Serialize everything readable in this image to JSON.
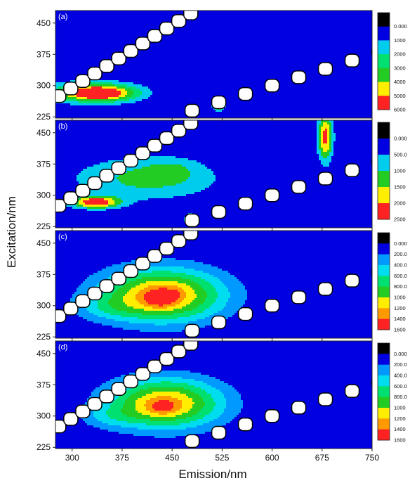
{
  "chart_data": {
    "type": "heatmap",
    "figure": {
      "xlabel": "Emission/nm",
      "ylabel": "Excitation/nm",
      "xlim": [
        275,
        750
      ],
      "ylim": [
        222,
        480
      ],
      "xticks": [
        300,
        375,
        450,
        525,
        600,
        675,
        750
      ],
      "yticks": [
        225,
        300,
        375,
        450
      ]
    },
    "panels": [
      {
        "label": "(a)",
        "colorbar": {
          "ticks": [
            "0.000",
            "1000",
            "2000",
            "3000",
            "4000",
            "5000",
            "6000"
          ],
          "colors": [
            "#000000",
            "#0000e0",
            "#00ccee",
            "#00e070",
            "#22cc22",
            "#ffee00",
            "#ff2222"
          ]
        },
        "peaks": [
          {
            "em": 340,
            "ex": 282,
            "sx": 38,
            "sy": 14,
            "amp": 6000
          },
          {
            "em": 320,
            "ex": 284,
            "sx": 60,
            "sy": 20,
            "amp": 1600
          },
          {
            "em": 520,
            "ex": 252,
            "sx": 6,
            "sy": 7,
            "amp": 5600
          },
          {
            "em": 560,
            "ex": 280,
            "sx": 6,
            "sy": 8,
            "amp": 3600
          }
        ]
      },
      {
        "label": "(b)",
        "colorbar": {
          "ticks": [
            "0.000",
            "500.0",
            "1000",
            "1500",
            "2000",
            "2500"
          ],
          "colors": [
            "#000000",
            "#0000e0",
            "#00ccee",
            "#22cc22",
            "#ffee00",
            "#ff2222"
          ]
        },
        "peaks": [
          {
            "em": 335,
            "ex": 283,
            "sx": 25,
            "sy": 10,
            "amp": 2400
          },
          {
            "em": 410,
            "ex": 340,
            "sx": 80,
            "sy": 38,
            "amp": 1150
          },
          {
            "em": 450,
            "ex": 360,
            "sx": 25,
            "sy": 18,
            "amp": 500
          },
          {
            "em": 680,
            "ex": 440,
            "sx": 8,
            "sy": 42,
            "amp": 2200
          },
          {
            "em": 477,
            "ex": 242,
            "sx": 5,
            "sy": 8,
            "amp": 1800
          }
        ]
      },
      {
        "label": "(c)",
        "colorbar": {
          "ticks": [
            "0.000",
            "200.0",
            "400.0",
            "600.0",
            "800.0",
            "1000",
            "1200",
            "1400",
            "1600"
          ],
          "colors": [
            "#000000",
            "#0000e0",
            "#0099ff",
            "#00ddee",
            "#00e070",
            "#22cc22",
            "#ffee00",
            "#ff9900",
            "#ff2222"
          ]
        },
        "peaks": [
          {
            "em": 435,
            "ex": 325,
            "sx": 65,
            "sy": 45,
            "amp": 1350
          },
          {
            "em": 432,
            "ex": 318,
            "sx": 16,
            "sy": 14,
            "amp": 500
          },
          {
            "em": 455,
            "ex": 330,
            "sx": 10,
            "sy": 10,
            "amp": 120
          },
          {
            "em": 350,
            "ex": 295,
            "sx": 35,
            "sy": 22,
            "amp": 250
          }
        ]
      },
      {
        "label": "(d)",
        "colorbar": {
          "ticks": [
            "0.000",
            "200.0",
            "400.0",
            "600.0",
            "800.0",
            "1000",
            "1200",
            "1400",
            "1600"
          ],
          "colors": [
            "#000000",
            "#0000e0",
            "#0099ff",
            "#00ddee",
            "#00e070",
            "#22cc22",
            "#ffee00",
            "#ff9900",
            "#ff2222"
          ]
        },
        "peaks": [
          {
            "em": 440,
            "ex": 330,
            "sx": 60,
            "sy": 42,
            "amp": 1280
          },
          {
            "em": 435,
            "ex": 322,
            "sx": 15,
            "sy": 12,
            "amp": 320
          },
          {
            "em": 355,
            "ex": 298,
            "sx": 32,
            "sy": 20,
            "amp": 250
          }
        ]
      }
    ]
  }
}
